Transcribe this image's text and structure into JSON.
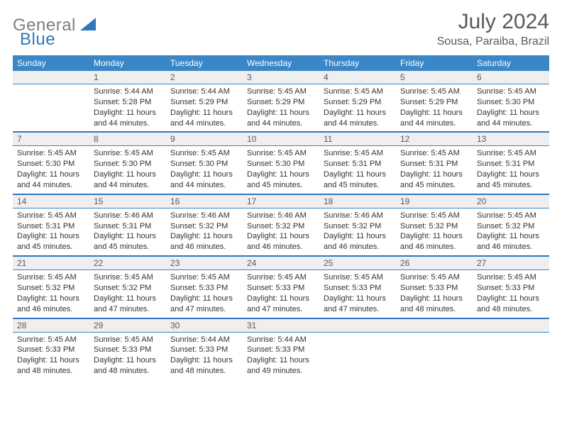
{
  "logo": {
    "part1": "General",
    "part2": "Blue"
  },
  "title": "July 2024",
  "location": "Sousa, Paraiba, Brazil",
  "colors": {
    "header_bg": "#3a87c8",
    "header_text": "#ffffff",
    "daynum_bg": "#efefef",
    "daynum_text": "#595959",
    "week_divider": "#2f78bd",
    "body_text": "#333333",
    "logo_gray": "#7f7f7f",
    "logo_blue": "#2f78bd"
  },
  "day_headers": [
    "Sunday",
    "Monday",
    "Tuesday",
    "Wednesday",
    "Thursday",
    "Friday",
    "Saturday"
  ],
  "weeks": [
    [
      null,
      {
        "n": "1",
        "sr": "Sunrise: 5:44 AM",
        "ss": "Sunset: 5:28 PM",
        "d1": "Daylight: 11 hours",
        "d2": "and 44 minutes."
      },
      {
        "n": "2",
        "sr": "Sunrise: 5:44 AM",
        "ss": "Sunset: 5:29 PM",
        "d1": "Daylight: 11 hours",
        "d2": "and 44 minutes."
      },
      {
        "n": "3",
        "sr": "Sunrise: 5:45 AM",
        "ss": "Sunset: 5:29 PM",
        "d1": "Daylight: 11 hours",
        "d2": "and 44 minutes."
      },
      {
        "n": "4",
        "sr": "Sunrise: 5:45 AM",
        "ss": "Sunset: 5:29 PM",
        "d1": "Daylight: 11 hours",
        "d2": "and 44 minutes."
      },
      {
        "n": "5",
        "sr": "Sunrise: 5:45 AM",
        "ss": "Sunset: 5:29 PM",
        "d1": "Daylight: 11 hours",
        "d2": "and 44 minutes."
      },
      {
        "n": "6",
        "sr": "Sunrise: 5:45 AM",
        "ss": "Sunset: 5:30 PM",
        "d1": "Daylight: 11 hours",
        "d2": "and 44 minutes."
      }
    ],
    [
      {
        "n": "7",
        "sr": "Sunrise: 5:45 AM",
        "ss": "Sunset: 5:30 PM",
        "d1": "Daylight: 11 hours",
        "d2": "and 44 minutes."
      },
      {
        "n": "8",
        "sr": "Sunrise: 5:45 AM",
        "ss": "Sunset: 5:30 PM",
        "d1": "Daylight: 11 hours",
        "d2": "and 44 minutes."
      },
      {
        "n": "9",
        "sr": "Sunrise: 5:45 AM",
        "ss": "Sunset: 5:30 PM",
        "d1": "Daylight: 11 hours",
        "d2": "and 44 minutes."
      },
      {
        "n": "10",
        "sr": "Sunrise: 5:45 AM",
        "ss": "Sunset: 5:30 PM",
        "d1": "Daylight: 11 hours",
        "d2": "and 45 minutes."
      },
      {
        "n": "11",
        "sr": "Sunrise: 5:45 AM",
        "ss": "Sunset: 5:31 PM",
        "d1": "Daylight: 11 hours",
        "d2": "and 45 minutes."
      },
      {
        "n": "12",
        "sr": "Sunrise: 5:45 AM",
        "ss": "Sunset: 5:31 PM",
        "d1": "Daylight: 11 hours",
        "d2": "and 45 minutes."
      },
      {
        "n": "13",
        "sr": "Sunrise: 5:45 AM",
        "ss": "Sunset: 5:31 PM",
        "d1": "Daylight: 11 hours",
        "d2": "and 45 minutes."
      }
    ],
    [
      {
        "n": "14",
        "sr": "Sunrise: 5:45 AM",
        "ss": "Sunset: 5:31 PM",
        "d1": "Daylight: 11 hours",
        "d2": "and 45 minutes."
      },
      {
        "n": "15",
        "sr": "Sunrise: 5:46 AM",
        "ss": "Sunset: 5:31 PM",
        "d1": "Daylight: 11 hours",
        "d2": "and 45 minutes."
      },
      {
        "n": "16",
        "sr": "Sunrise: 5:46 AM",
        "ss": "Sunset: 5:32 PM",
        "d1": "Daylight: 11 hours",
        "d2": "and 46 minutes."
      },
      {
        "n": "17",
        "sr": "Sunrise: 5:46 AM",
        "ss": "Sunset: 5:32 PM",
        "d1": "Daylight: 11 hours",
        "d2": "and 46 minutes."
      },
      {
        "n": "18",
        "sr": "Sunrise: 5:46 AM",
        "ss": "Sunset: 5:32 PM",
        "d1": "Daylight: 11 hours",
        "d2": "and 46 minutes."
      },
      {
        "n": "19",
        "sr": "Sunrise: 5:45 AM",
        "ss": "Sunset: 5:32 PM",
        "d1": "Daylight: 11 hours",
        "d2": "and 46 minutes."
      },
      {
        "n": "20",
        "sr": "Sunrise: 5:45 AM",
        "ss": "Sunset: 5:32 PM",
        "d1": "Daylight: 11 hours",
        "d2": "and 46 minutes."
      }
    ],
    [
      {
        "n": "21",
        "sr": "Sunrise: 5:45 AM",
        "ss": "Sunset: 5:32 PM",
        "d1": "Daylight: 11 hours",
        "d2": "and 46 minutes."
      },
      {
        "n": "22",
        "sr": "Sunrise: 5:45 AM",
        "ss": "Sunset: 5:32 PM",
        "d1": "Daylight: 11 hours",
        "d2": "and 47 minutes."
      },
      {
        "n": "23",
        "sr": "Sunrise: 5:45 AM",
        "ss": "Sunset: 5:33 PM",
        "d1": "Daylight: 11 hours",
        "d2": "and 47 minutes."
      },
      {
        "n": "24",
        "sr": "Sunrise: 5:45 AM",
        "ss": "Sunset: 5:33 PM",
        "d1": "Daylight: 11 hours",
        "d2": "and 47 minutes."
      },
      {
        "n": "25",
        "sr": "Sunrise: 5:45 AM",
        "ss": "Sunset: 5:33 PM",
        "d1": "Daylight: 11 hours",
        "d2": "and 47 minutes."
      },
      {
        "n": "26",
        "sr": "Sunrise: 5:45 AM",
        "ss": "Sunset: 5:33 PM",
        "d1": "Daylight: 11 hours",
        "d2": "and 48 minutes."
      },
      {
        "n": "27",
        "sr": "Sunrise: 5:45 AM",
        "ss": "Sunset: 5:33 PM",
        "d1": "Daylight: 11 hours",
        "d2": "and 48 minutes."
      }
    ],
    [
      {
        "n": "28",
        "sr": "Sunrise: 5:45 AM",
        "ss": "Sunset: 5:33 PM",
        "d1": "Daylight: 11 hours",
        "d2": "and 48 minutes."
      },
      {
        "n": "29",
        "sr": "Sunrise: 5:45 AM",
        "ss": "Sunset: 5:33 PM",
        "d1": "Daylight: 11 hours",
        "d2": "and 48 minutes."
      },
      {
        "n": "30",
        "sr": "Sunrise: 5:44 AM",
        "ss": "Sunset: 5:33 PM",
        "d1": "Daylight: 11 hours",
        "d2": "and 48 minutes."
      },
      {
        "n": "31",
        "sr": "Sunrise: 5:44 AM",
        "ss": "Sunset: 5:33 PM",
        "d1": "Daylight: 11 hours",
        "d2": "and 49 minutes."
      },
      null,
      null,
      null
    ]
  ]
}
